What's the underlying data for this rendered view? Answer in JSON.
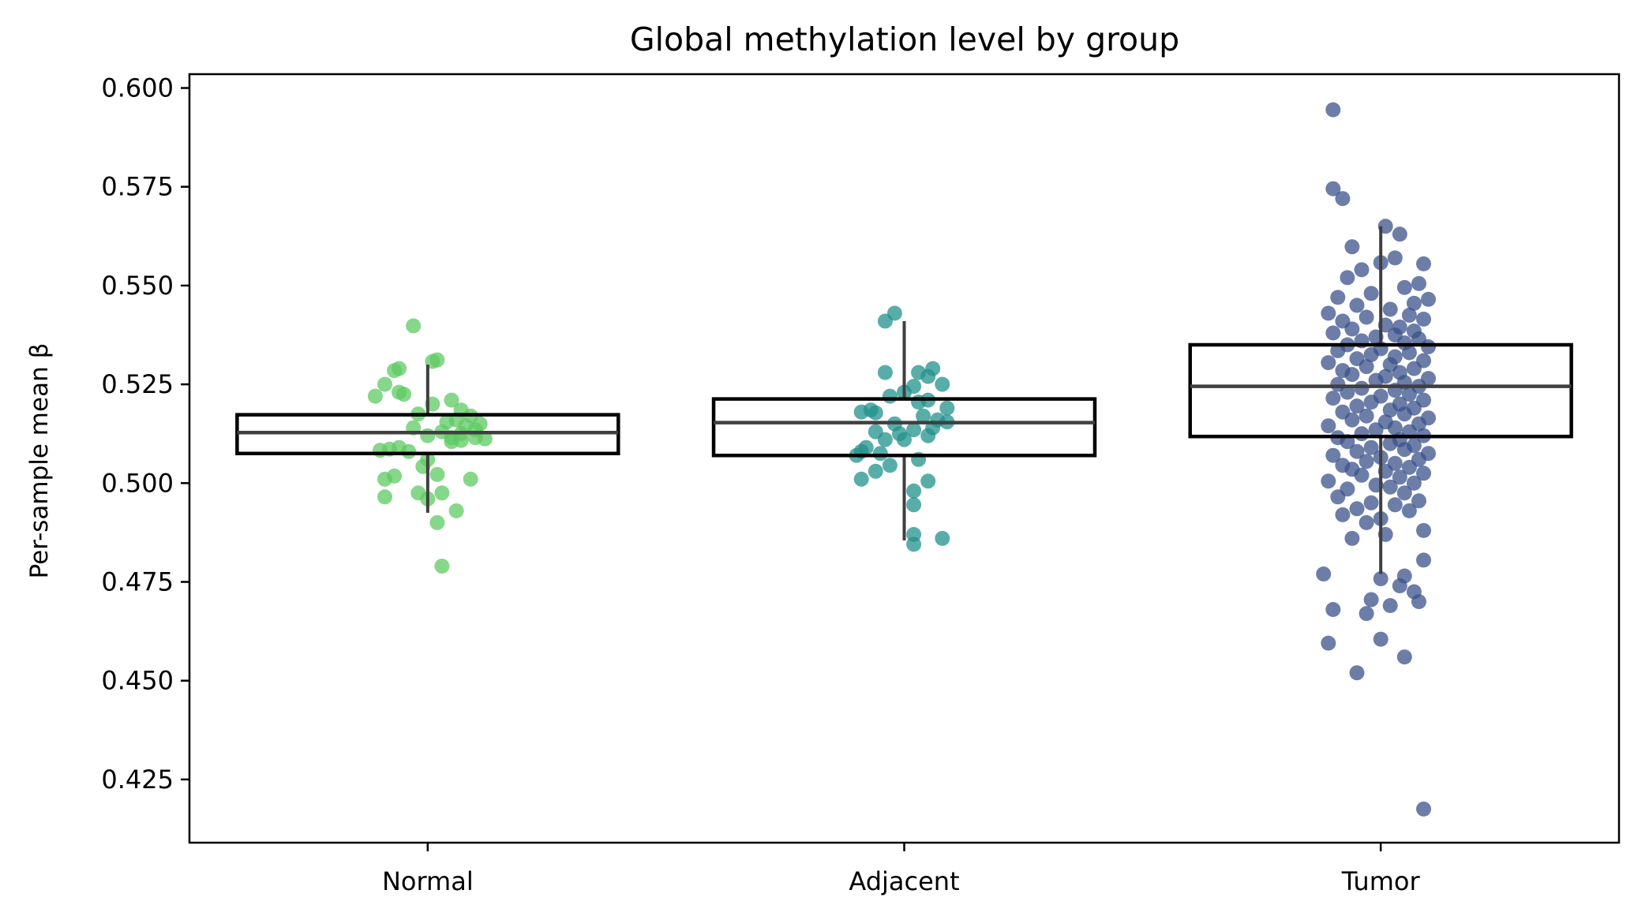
{
  "chart_data": {
    "type": "box",
    "title": "Global methylation level by group",
    "xlabel": "",
    "ylabel": "Per-sample mean β",
    "ylim": [
      0.409,
      0.6035
    ],
    "yticks": [
      "0.425",
      "0.450",
      "0.475",
      "0.500",
      "0.525",
      "0.550",
      "0.575",
      "0.600"
    ],
    "ytick_values": [
      0.425,
      0.45,
      0.475,
      0.5,
      0.525,
      0.55,
      0.575,
      0.6
    ],
    "categories": [
      "Normal",
      "Adjacent",
      "Tumor"
    ],
    "grid": false,
    "legend": "none",
    "colors": {
      "Normal": "#5ec962",
      "Adjacent": "#21918c",
      "Tumor": "#3b528b",
      "box": "#000000",
      "median": "#3f3f3f"
    },
    "boxes": [
      {
        "category": "Normal",
        "q1": 0.5075,
        "median": 0.5128,
        "q3": 0.5173,
        "whisker_low": 0.4925,
        "whisker_high": 0.53
      },
      {
        "category": "Adjacent",
        "q1": 0.507,
        "median": 0.5153,
        "q3": 0.5213,
        "whisker_low": 0.4855,
        "whisker_high": 0.541
      },
      {
        "category": "Tumor",
        "q1": 0.5118,
        "median": 0.5245,
        "q3": 0.535,
        "whisker_low": 0.477,
        "whisker_high": 0.565
      }
    ],
    "points": {
      "Normal": [
        [
          -0.03,
          0.5398
        ],
        [
          0.02,
          0.5312
        ],
        [
          0.01,
          0.5308
        ],
        [
          -0.06,
          0.529
        ],
        [
          -0.07,
          0.5285
        ],
        [
          -0.09,
          0.525
        ],
        [
          -0.06,
          0.523
        ],
        [
          -0.05,
          0.5225
        ],
        [
          -0.11,
          0.522
        ],
        [
          0.05,
          0.521
        ],
        [
          0.01,
          0.52
        ],
        [
          0.07,
          0.5185
        ],
        [
          -0.02,
          0.5175
        ],
        [
          0.09,
          0.517
        ],
        [
          0.06,
          0.516
        ],
        [
          0.04,
          0.5155
        ],
        [
          0.11,
          0.515
        ],
        [
          0.08,
          0.5145
        ],
        [
          -0.03,
          0.514
        ],
        [
          0.1,
          0.5135
        ],
        [
          0.03,
          0.513
        ],
        [
          0.07,
          0.5125
        ],
        [
          0.0,
          0.512
        ],
        [
          0.05,
          0.5115
        ],
        [
          0.1,
          0.5115
        ],
        [
          0.12,
          0.5112
        ],
        [
          0.07,
          0.5108
        ],
        [
          0.05,
          0.5105
        ],
        [
          -0.06,
          0.509
        ],
        [
          -0.08,
          0.5086
        ],
        [
          -0.1,
          0.5083
        ],
        [
          -0.04,
          0.508
        ],
        [
          0.0,
          0.506
        ],
        [
          -0.01,
          0.5042
        ],
        [
          0.02,
          0.5022
        ],
        [
          -0.07,
          0.5018
        ],
        [
          -0.09,
          0.501
        ],
        [
          0.09,
          0.501
        ],
        [
          -0.02,
          0.4975
        ],
        [
          0.03,
          0.4975
        ],
        [
          -0.09,
          0.4965
        ],
        [
          0.0,
          0.496
        ],
        [
          0.06,
          0.493
        ],
        [
          0.02,
          0.49
        ],
        [
          0.03,
          0.479
        ]
      ],
      "Adjacent": [
        [
          -0.02,
          0.543
        ],
        [
          -0.04,
          0.541
        ],
        [
          0.06,
          0.529
        ],
        [
          0.03,
          0.528
        ],
        [
          -0.04,
          0.528
        ],
        [
          0.05,
          0.527
        ],
        [
          0.08,
          0.525
        ],
        [
          0.02,
          0.5245
        ],
        [
          0.0,
          0.523
        ],
        [
          -0.03,
          0.522
        ],
        [
          0.05,
          0.521
        ],
        [
          0.03,
          0.5205
        ],
        [
          0.09,
          0.519
        ],
        [
          -0.07,
          0.5185
        ],
        [
          -0.09,
          0.518
        ],
        [
          -0.06,
          0.5178
        ],
        [
          0.04,
          0.517
        ],
        [
          0.07,
          0.516
        ],
        [
          0.09,
          0.5155
        ],
        [
          -0.02,
          0.515
        ],
        [
          0.06,
          0.514
        ],
        [
          0.02,
          0.5135
        ],
        [
          -0.06,
          0.513
        ],
        [
          -0.01,
          0.5125
        ],
        [
          0.05,
          0.512
        ],
        [
          0.0,
          0.511
        ],
        [
          -0.04,
          0.511
        ],
        [
          -0.08,
          0.509
        ],
        [
          -0.09,
          0.508
        ],
        [
          -0.05,
          0.5075
        ],
        [
          -0.1,
          0.507
        ],
        [
          0.03,
          0.506
        ],
        [
          -0.03,
          0.5045
        ],
        [
          -0.06,
          0.503
        ],
        [
          -0.09,
          0.501
        ],
        [
          0.05,
          0.5005
        ],
        [
          0.02,
          0.498
        ],
        [
          0.02,
          0.4945
        ],
        [
          0.02,
          0.487
        ],
        [
          0.08,
          0.486
        ],
        [
          0.02,
          0.4845
        ]
      ],
      "Tumor": [
        [
          -0.1,
          0.5945
        ],
        [
          -0.1,
          0.5745
        ],
        [
          -0.08,
          0.572
        ],
        [
          0.01,
          0.565
        ],
        [
          0.04,
          0.563
        ],
        [
          -0.06,
          0.5598
        ],
        [
          0.09,
          0.5555
        ],
        [
          0.03,
          0.557
        ],
        [
          0.0,
          0.5558
        ],
        [
          -0.04,
          0.554
        ],
        [
          -0.07,
          0.552
        ],
        [
          0.08,
          0.5505
        ],
        [
          0.05,
          0.5495
        ],
        [
          -0.02,
          0.548
        ],
        [
          -0.09,
          0.547
        ],
        [
          0.1,
          0.5465
        ],
        [
          0.07,
          0.5455
        ],
        [
          -0.05,
          0.545
        ],
        [
          0.02,
          0.544
        ],
        [
          -0.11,
          0.543
        ],
        [
          0.06,
          0.5425
        ],
        [
          -0.03,
          0.542
        ],
        [
          0.09,
          0.5415
        ],
        [
          -0.08,
          0.541
        ],
        [
          0.01,
          0.54
        ],
        [
          0.04,
          0.5395
        ],
        [
          -0.06,
          0.539
        ],
        [
          0.07,
          0.5385
        ],
        [
          -0.1,
          0.538
        ],
        [
          0.03,
          0.5375
        ],
        [
          -0.01,
          0.537
        ],
        [
          0.08,
          0.5365
        ],
        [
          -0.04,
          0.536
        ],
        [
          0.05,
          0.5355
        ],
        [
          -0.07,
          0.535
        ],
        [
          0.1,
          0.5345
        ],
        [
          0.0,
          0.534
        ],
        [
          -0.09,
          0.5335
        ],
        [
          0.06,
          0.533
        ],
        [
          -0.02,
          0.5325
        ],
        [
          0.03,
          0.532
        ],
        [
          -0.05,
          0.5315
        ],
        [
          0.09,
          0.531
        ],
        [
          -0.11,
          0.5305
        ],
        [
          0.02,
          0.53
        ],
        [
          -0.03,
          0.5295
        ],
        [
          0.07,
          0.529
        ],
        [
          -0.08,
          0.5285
        ],
        [
          0.04,
          0.528
        ],
        [
          -0.06,
          0.5275
        ],
        [
          0.01,
          0.527
        ],
        [
          0.1,
          0.5265
        ],
        [
          -0.01,
          0.526
        ],
        [
          0.05,
          0.5255
        ],
        [
          -0.09,
          0.525
        ],
        [
          0.08,
          0.5245
        ],
        [
          -0.04,
          0.524
        ],
        [
          0.03,
          0.5235
        ],
        [
          -0.07,
          0.523
        ],
        [
          0.06,
          0.5225
        ],
        [
          0.0,
          0.522
        ],
        [
          -0.1,
          0.5215
        ],
        [
          0.09,
          0.521
        ],
        [
          -0.02,
          0.5205
        ],
        [
          0.04,
          0.52
        ],
        [
          -0.05,
          0.5195
        ],
        [
          0.07,
          0.519
        ],
        [
          0.02,
          0.5185
        ],
        [
          -0.08,
          0.518
        ],
        [
          0.05,
          0.5175
        ],
        [
          -0.03,
          0.517
        ],
        [
          0.1,
          0.5165
        ],
        [
          -0.06,
          0.516
        ],
        [
          0.01,
          0.5155
        ],
        [
          0.08,
          0.515
        ],
        [
          -0.11,
          0.5145
        ],
        [
          0.03,
          0.514
        ],
        [
          -0.01,
          0.5135
        ],
        [
          0.06,
          0.513
        ],
        [
          -0.04,
          0.5125
        ],
        [
          0.09,
          0.512
        ],
        [
          -0.09,
          0.5115
        ],
        [
          0.04,
          0.511
        ],
        [
          -0.07,
          0.5105
        ],
        [
          0.02,
          0.51
        ],
        [
          0.07,
          0.5095
        ],
        [
          -0.02,
          0.509
        ],
        [
          0.05,
          0.5085
        ],
        [
          -0.05,
          0.508
        ],
        [
          0.1,
          0.5075
        ],
        [
          -0.1,
          0.507
        ],
        [
          0.0,
          0.5065
        ],
        [
          0.08,
          0.506
        ],
        [
          -0.03,
          0.5055
        ],
        [
          0.03,
          0.505
        ],
        [
          -0.08,
          0.5045
        ],
        [
          0.06,
          0.504
        ],
        [
          -0.06,
          0.5035
        ],
        [
          0.01,
          0.503
        ],
        [
          0.09,
          0.5025
        ],
        [
          -0.04,
          0.502
        ],
        [
          0.04,
          0.5015
        ],
        [
          -0.11,
          0.5005
        ],
        [
          0.07,
          0.5
        ],
        [
          -0.01,
          0.4995
        ],
        [
          0.02,
          0.499
        ],
        [
          -0.07,
          0.4985
        ],
        [
          0.05,
          0.4975
        ],
        [
          -0.09,
          0.4965
        ],
        [
          0.08,
          0.4955
        ],
        [
          -0.02,
          0.495
        ],
        [
          0.03,
          0.4945
        ],
        [
          -0.05,
          0.4935
        ],
        [
          0.06,
          0.493
        ],
        [
          -0.08,
          0.492
        ],
        [
          0.0,
          0.491
        ],
        [
          -0.03,
          0.49
        ],
        [
          0.09,
          0.488
        ],
        [
          0.01,
          0.487
        ],
        [
          -0.06,
          0.486
        ],
        [
          0.09,
          0.4805
        ],
        [
          -0.12,
          0.477
        ],
        [
          0.05,
          0.4765
        ],
        [
          0.0,
          0.4758
        ],
        [
          0.04,
          0.474
        ],
        [
          0.07,
          0.4725
        ],
        [
          -0.02,
          0.4705
        ],
        [
          0.08,
          0.47
        ],
        [
          0.02,
          0.469
        ],
        [
          -0.1,
          0.468
        ],
        [
          -0.03,
          0.467
        ],
        [
          -0.11,
          0.4595
        ],
        [
          0.0,
          0.4605
        ],
        [
          0.05,
          0.456
        ],
        [
          -0.05,
          0.452
        ],
        [
          0.09,
          0.4175
        ]
      ]
    }
  }
}
